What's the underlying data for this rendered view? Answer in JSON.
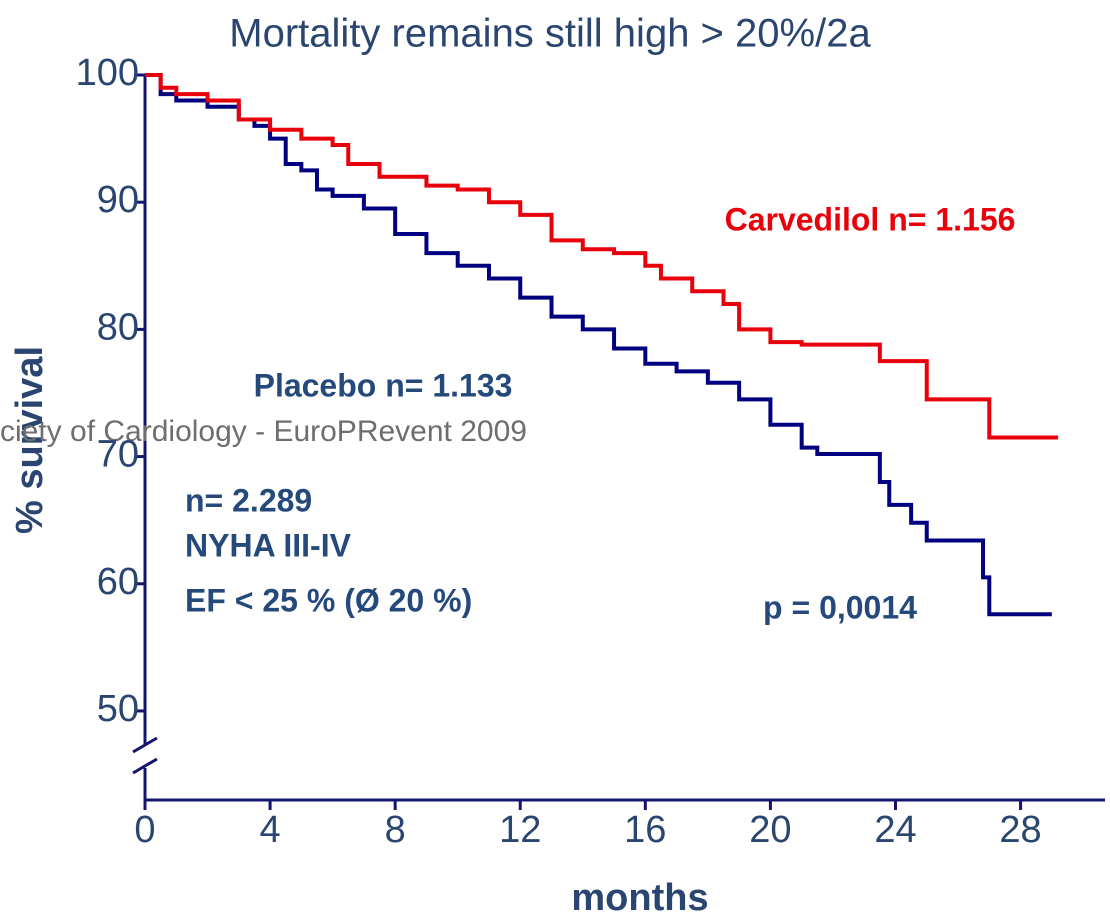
{
  "chart_data": {
    "type": "step",
    "title": "Mortality remains still high > 20%/2a",
    "x_label": "months",
    "y_label": "% survival",
    "xlim": [
      0,
      30.7
    ],
    "ylim": [
      43,
      100
    ],
    "xticks": [
      0,
      4,
      8,
      12,
      16,
      20,
      24,
      28
    ],
    "yticks": [
      50,
      60,
      70,
      80,
      90,
      100
    ],
    "series": [
      {
        "name": "Carvedilol n= 1.156",
        "color": "#e8000b",
        "x": [
          0,
          0.5,
          1,
          2,
          3,
          4,
          5,
          6,
          6.5,
          7.5,
          9,
          10,
          11,
          12,
          13,
          14,
          15,
          16,
          16.5,
          17.5,
          18.5,
          19,
          20,
          21,
          23.5,
          25,
          27,
          29.2
        ],
        "values": [
          100,
          99,
          98.5,
          98,
          96.5,
          95.7,
          95,
          94.5,
          93,
          92,
          91.3,
          91,
          90,
          89,
          87,
          86.3,
          86,
          85,
          84,
          83,
          82,
          80,
          79,
          78.8,
          77.5,
          74.5,
          71.5,
          71.5
        ]
      },
      {
        "name": "Placebo n= 1.133",
        "color": "#000080",
        "x": [
          0,
          0.5,
          1,
          2,
          3,
          3.5,
          4,
          4.5,
          5,
          5.5,
          6,
          7,
          8,
          9,
          10,
          11,
          12,
          13,
          14,
          15,
          16,
          17,
          18,
          19,
          20,
          21,
          21.5,
          23.5,
          23.8,
          24.5,
          25,
          26.8,
          27,
          29
        ],
        "values": [
          100,
          98.5,
          98,
          97.5,
          96.5,
          96,
          95,
          93,
          92.5,
          91,
          90.5,
          89.5,
          87.5,
          86,
          85,
          84,
          82.5,
          81,
          80,
          78.5,
          77.3,
          76.7,
          75.8,
          74.5,
          72.5,
          70.7,
          70.2,
          68,
          66.2,
          64.8,
          63.4,
          60.5,
          57.6,
          57.6
        ]
      }
    ],
    "annotations": [
      "n= 2.289",
      "NYHA III-IV",
      "EF < 25 % (Ø 20 %)",
      "p = 0,0014"
    ],
    "watermark": "ciety of Cardiology - EuroPRevent 2009"
  }
}
